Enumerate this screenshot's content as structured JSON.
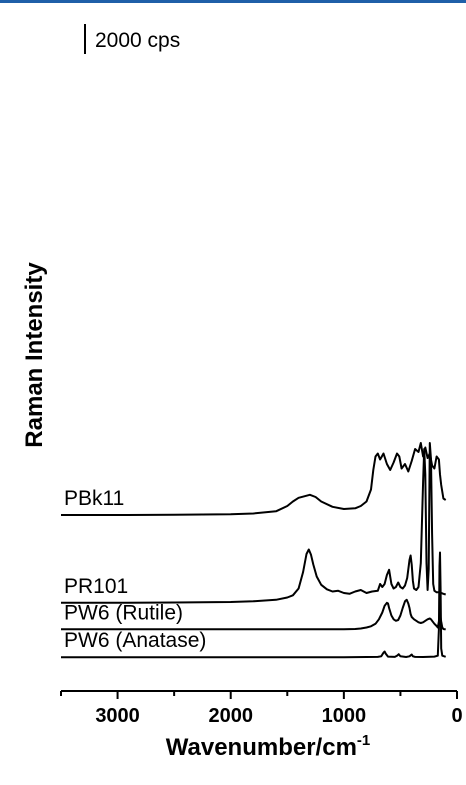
{
  "chart_data": {
    "type": "line",
    "xlabel": "Wavenumber/cm",
    "xlabel_superscript": "-1",
    "ylabel": "Raman Intensity",
    "xlim": [
      3500,
      0
    ],
    "x_reversed": true,
    "x_ticks": [
      3000,
      2000,
      1000,
      0
    ],
    "x_tick_labels": [
      "3000",
      "2000",
      "1000",
      "0"
    ],
    "scale_bar_label": "2000 cps",
    "grid": false,
    "legend": "none",
    "line_color": "#000000",
    "series": [
      {
        "name": "PBk11",
        "baseline": 9800,
        "x": [
          3500,
          3000,
          2500,
          2000,
          1800,
          1600,
          1500,
          1450,
          1400,
          1350,
          1300,
          1250,
          1200,
          1100,
          1000,
          900,
          850,
          800,
          760,
          740,
          720,
          700,
          680,
          650,
          620,
          590,
          560,
          530,
          510,
          490,
          460,
          430,
          400,
          370,
          340,
          320,
          300,
          280,
          260,
          240,
          220,
          200,
          180,
          160,
          150,
          140,
          120,
          100
        ],
        "y": [
          9800,
          9800,
          9820,
          9850,
          9900,
          10050,
          10400,
          10700,
          10950,
          11050,
          11150,
          11000,
          10700,
          10350,
          10200,
          10250,
          10400,
          10700,
          11500,
          12800,
          13700,
          13900,
          13500,
          13900,
          13200,
          12800,
          13300,
          13900,
          13700,
          12900,
          13200,
          12700,
          13400,
          14200,
          14000,
          14600,
          13700,
          14300,
          13600,
          13900,
          13100,
          12900,
          13700,
          13500,
          12500,
          11800,
          10900,
          10800
        ]
      },
      {
        "name": "PR101",
        "baseline": 3950,
        "x": [
          3500,
          3000,
          2500,
          2000,
          1800,
          1600,
          1500,
          1450,
          1400,
          1360,
          1330,
          1310,
          1290,
          1270,
          1240,
          1200,
          1150,
          1100,
          1050,
          1000,
          950,
          900,
          850,
          800,
          750,
          700,
          680,
          660,
          640,
          620,
          600,
          580,
          560,
          540,
          520,
          500,
          480,
          460,
          440,
          420,
          410,
          400,
          390,
          380,
          360,
          340,
          320,
          300,
          290,
          280,
          270,
          260,
          250,
          240,
          230,
          220,
          210,
          200,
          190,
          180,
          160,
          140,
          120,
          100
        ],
        "y": [
          3950,
          3950,
          3970,
          4000,
          4050,
          4150,
          4300,
          4450,
          4900,
          6000,
          7200,
          7500,
          7150,
          6500,
          5700,
          5150,
          4850,
          4700,
          4750,
          4600,
          4550,
          4700,
          4800,
          4600,
          4700,
          4750,
          5200,
          5000,
          5200,
          5800,
          6150,
          5200,
          4900,
          5000,
          5300,
          5000,
          4900,
          5100,
          5600,
          6800,
          7100,
          6500,
          5400,
          4900,
          4800,
          5000,
          6600,
          12000,
          14200,
          12500,
          6600,
          4800,
          6200,
          14600,
          13500,
          8500,
          5200,
          4750,
          4700,
          4650,
          4650,
          4600,
          4550,
          4500
        ]
      },
      {
        "name": "PW6 (Rutile)",
        "baseline": 2180,
        "x": [
          3500,
          3000,
          2000,
          1500,
          1000,
          900,
          850,
          800,
          760,
          720,
          690,
          660,
          640,
          620,
          610,
          600,
          580,
          560,
          540,
          520,
          500,
          480,
          460,
          445,
          430,
          420,
          410,
          400,
          380,
          360,
          340,
          320,
          300,
          280,
          260,
          240,
          230,
          220,
          200,
          180,
          170,
          160,
          150,
          140,
          130,
          120,
          110,
          100
        ],
        "y": [
          2180,
          2180,
          2180,
          2180,
          2180,
          2200,
          2230,
          2300,
          2380,
          2550,
          2850,
          3300,
          3750,
          3950,
          3900,
          3600,
          3100,
          2850,
          2750,
          2800,
          3100,
          3600,
          4050,
          4150,
          3900,
          3600,
          3200,
          3000,
          2850,
          2750,
          2650,
          2600,
          2650,
          2750,
          2850,
          2900,
          2850,
          2750,
          2550,
          2400,
          2300,
          2700,
          3200,
          2700,
          2300,
          2200,
          2180,
          2180
        ]
      },
      {
        "name": "PW6 (Anatase)",
        "baseline": 320,
        "x": [
          3500,
          3000,
          2000,
          1000,
          800,
          700,
          670,
          650,
          640,
          630,
          610,
          550,
          530,
          515,
          500,
          450,
          420,
          400,
          390,
          370,
          300,
          200,
          170,
          160,
          155,
          150,
          145,
          140,
          130,
          100
        ],
        "y": [
          320,
          320,
          320,
          320,
          330,
          340,
          380,
          620,
          700,
          560,
          360,
          340,
          420,
          520,
          380,
          330,
          380,
          500,
          380,
          340,
          330,
          360,
          420,
          2200,
          6400,
          7300,
          4800,
          900,
          420,
          350
        ]
      }
    ]
  },
  "labels": {
    "scale_bar": "2000 cps"
  }
}
